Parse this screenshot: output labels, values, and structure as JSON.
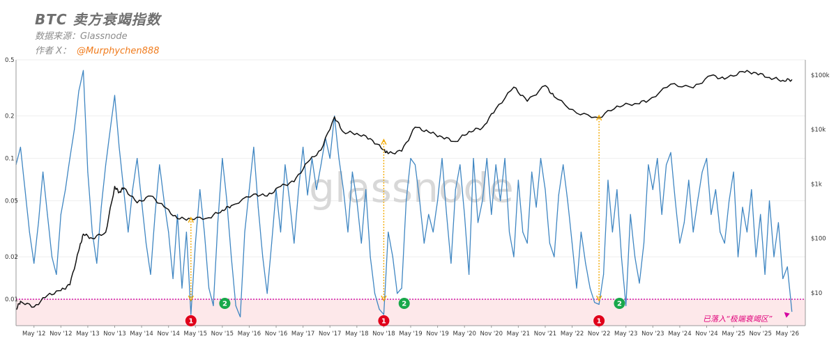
{
  "header": {
    "title": "BTC 卖方衰竭指数",
    "source": "数据来源：Glassnode",
    "author_prefix": "作者 X：",
    "author_handle": "@Murphychen888"
  },
  "watermark": "glassnode",
  "annotation": "已落入“极端衰竭区”",
  "colors": {
    "index_line": "#3f86c2",
    "price_line": "#111111",
    "threshold_line": "#d400a0",
    "zone_fill": "#fde8ea",
    "guide": "#f2a900",
    "badge_red": "#e0001a",
    "badge_green": "#18a84a"
  },
  "chart_data": {
    "type": "line",
    "x_axis": {
      "labels": [
        "May '12",
        "Nov '12",
        "May '13",
        "Nov '13",
        "May '14",
        "Nov '14",
        "May '15",
        "Nov '15",
        "May '16",
        "Nov '16",
        "May '17",
        "Nov '17",
        "May '18",
        "Nov '18",
        "May '19",
        "Nov '19",
        "May '20",
        "Nov '20",
        "May '21",
        "Nov '21",
        "May '22",
        "Nov '22",
        "May '23",
        "Nov '23",
        "May '24",
        "Nov '24",
        "May '25",
        "Nov '25",
        "May '26"
      ],
      "range": [
        "2012-01",
        "2026-09"
      ]
    },
    "y_left": {
      "scale": "log",
      "ticks": [
        0.5,
        0.2,
        0.1,
        0.05,
        0.02,
        0.01
      ],
      "tick_labels": [
        "0.5",
        "0.2",
        "0.1",
        "0.05",
        "0.02",
        "0.01"
      ],
      "range": [
        0.0065,
        0.5
      ]
    },
    "y_right": {
      "scale": "log",
      "ticks": [
        100000,
        10000,
        1000,
        100,
        10
      ],
      "tick_labels": [
        "$100k",
        "$10k",
        "$1k",
        "$100",
        "$10"
      ],
      "range": [
        2.5,
        190000
      ]
    },
    "threshold": 0.01,
    "grid": true,
    "series": [
      {
        "role": "index",
        "axis": "left",
        "points": [
          [
            "2012-01",
            0.09
          ],
          [
            "2012-02",
            0.12
          ],
          [
            "2012-03",
            0.06
          ],
          [
            "2012-04",
            0.03
          ],
          [
            "2012-05",
            0.018
          ],
          [
            "2012-06",
            0.035
          ],
          [
            "2012-07",
            0.08
          ],
          [
            "2012-08",
            0.04
          ],
          [
            "2012-09",
            0.02
          ],
          [
            "2012-10",
            0.015
          ],
          [
            "2012-11",
            0.04
          ],
          [
            "2012-12",
            0.06
          ],
          [
            "2013-01",
            0.1
          ],
          [
            "2013-02",
            0.16
          ],
          [
            "2013-03",
            0.3
          ],
          [
            "2013-04",
            0.42
          ],
          [
            "2013-05",
            0.08
          ],
          [
            "2013-06",
            0.03
          ],
          [
            "2013-07",
            0.018
          ],
          [
            "2013-08",
            0.045
          ],
          [
            "2013-09",
            0.09
          ],
          [
            "2013-10",
            0.16
          ],
          [
            "2013-11",
            0.28
          ],
          [
            "2013-12",
            0.12
          ],
          [
            "2014-01",
            0.06
          ],
          [
            "2014-02",
            0.03
          ],
          [
            "2014-03",
            0.06
          ],
          [
            "2014-04",
            0.1
          ],
          [
            "2014-05",
            0.05
          ],
          [
            "2014-06",
            0.025
          ],
          [
            "2014-07",
            0.015
          ],
          [
            "2014-08",
            0.04
          ],
          [
            "2014-09",
            0.09
          ],
          [
            "2014-10",
            0.05
          ],
          [
            "2014-11",
            0.03
          ],
          [
            "2014-12",
            0.014
          ],
          [
            "2015-01",
            0.04
          ],
          [
            "2015-02",
            0.012
          ],
          [
            "2015-03",
            0.03
          ],
          [
            "2015-04",
            0.0078
          ],
          [
            "2015-05",
            0.025
          ],
          [
            "2015-06",
            0.06
          ],
          [
            "2015-07",
            0.03
          ],
          [
            "2015-08",
            0.012
          ],
          [
            "2015-09",
            0.009
          ],
          [
            "2015-10",
            0.035
          ],
          [
            "2015-11",
            0.1
          ],
          [
            "2015-12",
            0.05
          ],
          [
            "2016-01",
            0.02
          ],
          [
            "2016-02",
            0.009
          ],
          [
            "2016-03",
            0.0075
          ],
          [
            "2016-04",
            0.03
          ],
          [
            "2016-05",
            0.06
          ],
          [
            "2016-06",
            0.12
          ],
          [
            "2016-07",
            0.045
          ],
          [
            "2016-08",
            0.02
          ],
          [
            "2016-09",
            0.011
          ],
          [
            "2016-10",
            0.025
          ],
          [
            "2016-11",
            0.06
          ],
          [
            "2016-12",
            0.03
          ],
          [
            "2017-01",
            0.09
          ],
          [
            "2017-02",
            0.05
          ],
          [
            "2017-03",
            0.025
          ],
          [
            "2017-04",
            0.06
          ],
          [
            "2017-05",
            0.12
          ],
          [
            "2017-06",
            0.055
          ],
          [
            "2017-07",
            0.1
          ],
          [
            "2017-08",
            0.06
          ],
          [
            "2017-09",
            0.09
          ],
          [
            "2017-10",
            0.14
          ],
          [
            "2017-11",
            0.1
          ],
          [
            "2017-12",
            0.2
          ],
          [
            "2018-01",
            0.1
          ],
          [
            "2018-02",
            0.06
          ],
          [
            "2018-03",
            0.03
          ],
          [
            "2018-04",
            0.08
          ],
          [
            "2018-05",
            0.05
          ],
          [
            "2018-06",
            0.025
          ],
          [
            "2018-07",
            0.06
          ],
          [
            "2018-08",
            0.02
          ],
          [
            "2018-09",
            0.011
          ],
          [
            "2018-10",
            0.0085
          ],
          [
            "2018-11",
            0.0078
          ],
          [
            "2018-12",
            0.03
          ],
          [
            "2019-01",
            0.02
          ],
          [
            "2019-02",
            0.011
          ],
          [
            "2019-03",
            0.012
          ],
          [
            "2019-04",
            0.05
          ],
          [
            "2019-05",
            0.1
          ],
          [
            "2019-06",
            0.09
          ],
          [
            "2019-07",
            0.05
          ],
          [
            "2019-08",
            0.025
          ],
          [
            "2019-09",
            0.04
          ],
          [
            "2019-10",
            0.03
          ],
          [
            "2019-11",
            0.05
          ],
          [
            "2019-12",
            0.1
          ],
          [
            "2020-01",
            0.04
          ],
          [
            "2020-02",
            0.018
          ],
          [
            "2020-03",
            0.06
          ],
          [
            "2020-04",
            0.09
          ],
          [
            "2020-05",
            0.04
          ],
          [
            "2020-06",
            0.015
          ],
          [
            "2020-07",
            0.1
          ],
          [
            "2020-08",
            0.035
          ],
          [
            "2020-09",
            0.05
          ],
          [
            "2020-10",
            0.1
          ],
          [
            "2020-11",
            0.04
          ],
          [
            "2020-12",
            0.09
          ],
          [
            "2021-01",
            0.05
          ],
          [
            "2021-02",
            0.1
          ],
          [
            "2021-03",
            0.03
          ],
          [
            "2021-04",
            0.02
          ],
          [
            "2021-05",
            0.07
          ],
          [
            "2021-06",
            0.03
          ],
          [
            "2021-07",
            0.025
          ],
          [
            "2021-08",
            0.08
          ],
          [
            "2021-09",
            0.045
          ],
          [
            "2021-10",
            0.1
          ],
          [
            "2021-11",
            0.06
          ],
          [
            "2021-12",
            0.025
          ],
          [
            "2022-01",
            0.02
          ],
          [
            "2022-02",
            0.055
          ],
          [
            "2022-03",
            0.09
          ],
          [
            "2022-04",
            0.05
          ],
          [
            "2022-05",
            0.025
          ],
          [
            "2022-06",
            0.012
          ],
          [
            "2022-07",
            0.03
          ],
          [
            "2022-08",
            0.018
          ],
          [
            "2022-09",
            0.012
          ],
          [
            "2022-10",
            0.0095
          ],
          [
            "2022-11",
            0.0092
          ],
          [
            "2022-12",
            0.015
          ],
          [
            "2023-01",
            0.07
          ],
          [
            "2023-02",
            0.03
          ],
          [
            "2023-03",
            0.06
          ],
          [
            "2023-04",
            0.02
          ],
          [
            "2023-05",
            0.009
          ],
          [
            "2023-06",
            0.04
          ],
          [
            "2023-07",
            0.02
          ],
          [
            "2023-08",
            0.013
          ],
          [
            "2023-09",
            0.025
          ],
          [
            "2023-10",
            0.09
          ],
          [
            "2023-11",
            0.06
          ],
          [
            "2023-12",
            0.1
          ],
          [
            "2024-01",
            0.04
          ],
          [
            "2024-02",
            0.09
          ],
          [
            "2024-03",
            0.11
          ],
          [
            "2024-04",
            0.05
          ],
          [
            "2024-05",
            0.025
          ],
          [
            "2024-06",
            0.035
          ],
          [
            "2024-07",
            0.07
          ],
          [
            "2024-08",
            0.03
          ],
          [
            "2024-09",
            0.05
          ],
          [
            "2024-10",
            0.08
          ],
          [
            "2024-11",
            0.1
          ],
          [
            "2024-12",
            0.04
          ],
          [
            "2025-01",
            0.06
          ],
          [
            "2025-02",
            0.03
          ],
          [
            "2025-03",
            0.025
          ],
          [
            "2025-04",
            0.05
          ],
          [
            "2025-05",
            0.08
          ],
          [
            "2025-06",
            0.02
          ],
          [
            "2025-07",
            0.045
          ],
          [
            "2025-08",
            0.03
          ],
          [
            "2025-09",
            0.06
          ],
          [
            "2025-10",
            0.02
          ],
          [
            "2025-11",
            0.04
          ],
          [
            "2025-12",
            0.015
          ],
          [
            "2026-01",
            0.05
          ],
          [
            "2026-02",
            0.02
          ],
          [
            "2026-03",
            0.035
          ],
          [
            "2026-04",
            0.014
          ],
          [
            "2026-05",
            0.017
          ],
          [
            "2026-06",
            0.0082
          ]
        ]
      },
      {
        "role": "price",
        "axis": "right",
        "points": [
          [
            "2012-01",
            5
          ],
          [
            "2012-02",
            7
          ],
          [
            "2012-05",
            5.5
          ],
          [
            "2012-08",
            9
          ],
          [
            "2012-11",
            11
          ],
          [
            "2013-01",
            14
          ],
          [
            "2013-03",
            60
          ],
          [
            "2013-04",
            120
          ],
          [
            "2013-06",
            100
          ],
          [
            "2013-09",
            130
          ],
          [
            "2013-11",
            900
          ],
          [
            "2013-12",
            700
          ],
          [
            "2014-01",
            850
          ],
          [
            "2014-04",
            450
          ],
          [
            "2014-07",
            600
          ],
          [
            "2014-10",
            380
          ],
          [
            "2015-01",
            230
          ],
          [
            "2015-04",
            230
          ],
          [
            "2015-08",
            240
          ],
          [
            "2015-11",
            330
          ],
          [
            "2016-01",
            400
          ],
          [
            "2016-06",
            650
          ],
          [
            "2016-09",
            600
          ],
          [
            "2016-12",
            900
          ],
          [
            "2017-03",
            1100
          ],
          [
            "2017-06",
            2500
          ],
          [
            "2017-09",
            4200
          ],
          [
            "2017-12",
            17000
          ],
          [
            "2018-02",
            9000
          ],
          [
            "2018-05",
            8500
          ],
          [
            "2018-08",
            6800
          ],
          [
            "2018-11",
            4200
          ],
          [
            "2018-12",
            3600
          ],
          [
            "2019-03",
            4000
          ],
          [
            "2019-06",
            11000
          ],
          [
            "2019-09",
            9000
          ],
          [
            "2019-12",
            7300
          ],
          [
            "2020-03",
            6000
          ],
          [
            "2020-06",
            9200
          ],
          [
            "2020-09",
            10800
          ],
          [
            "2020-12",
            24000
          ],
          [
            "2021-04",
            60000
          ],
          [
            "2021-07",
            33000
          ],
          [
            "2021-11",
            64000
          ],
          [
            "2022-01",
            40000
          ],
          [
            "2022-06",
            20000
          ],
          [
            "2022-11",
            16500
          ],
          [
            "2023-03",
            27000
          ],
          [
            "2023-07",
            30000
          ],
          [
            "2023-10",
            34000
          ],
          [
            "2024-03",
            68000
          ],
          [
            "2024-08",
            58000
          ],
          [
            "2024-12",
            98000
          ],
          [
            "2025-03",
            84000
          ],
          [
            "2025-07",
            116000
          ],
          [
            "2025-10",
            110000
          ],
          [
            "2026-01",
            90000
          ],
          [
            "2026-04",
            80000
          ],
          [
            "2026-06",
            82000
          ]
        ]
      }
    ],
    "markers": [
      {
        "label": "1",
        "color": "red",
        "x": "2015-04"
      },
      {
        "label": "2",
        "color": "green",
        "x": "2015-10"
      },
      {
        "label": "1",
        "color": "red",
        "x": "2018-11"
      },
      {
        "label": "2",
        "color": "green",
        "x": "2019-02"
      },
      {
        "label": "1",
        "color": "red",
        "x": "2022-11"
      },
      {
        "label": "2",
        "color": "green",
        "x": "2023-02"
      }
    ],
    "guides": [
      {
        "x": "2015-04",
        "from_index": 0.0098,
        "to_price": 240
      },
      {
        "x": "2018-11",
        "from_index": 0.0098,
        "to_price": 6500
      },
      {
        "x": "2022-11",
        "from_index": 0.0098,
        "to_price": 18000
      }
    ]
  }
}
